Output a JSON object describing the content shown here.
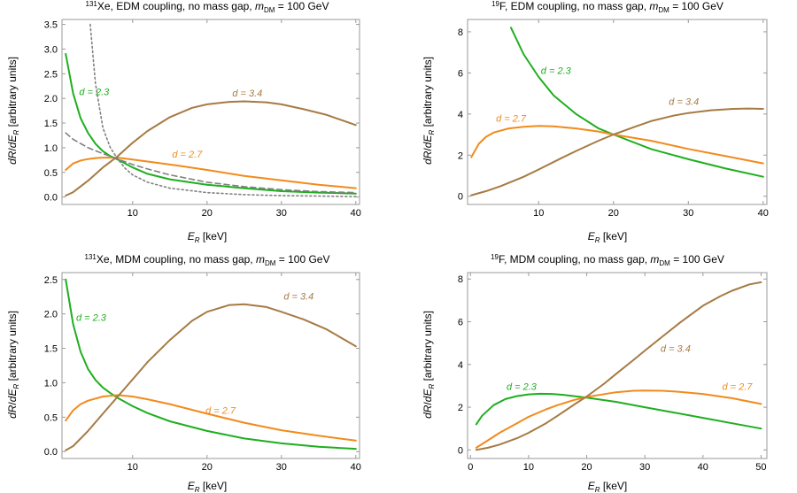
{
  "chart_data": [
    {
      "type": "line",
      "title": {
        "sup": "131",
        "main": "Xe, EDM coupling, no mass gap, ",
        "m": "m",
        "msub": "DM",
        "tail": " = 100 GeV"
      },
      "xlabel": {
        "E": "E",
        "sub": "R",
        "unit": " [keV]"
      },
      "ylabel": {
        "a": "dR",
        "slash": "/",
        "b": "dE",
        "sub": "R",
        "unit": " [arbitrary units]"
      },
      "xlim": [
        0.5,
        40.5
      ],
      "ylim": [
        -0.15,
        3.6
      ],
      "xticks": [
        10,
        20,
        30,
        40
      ],
      "yticks": [
        "0.0",
        "0.5",
        "1.0",
        "1.5",
        "2.0",
        "2.5",
        "3.0",
        "3.5"
      ],
      "series": [
        {
          "name": "d = 2.3",
          "color": "#1fae1f",
          "dash": "",
          "x": [
            1,
            2,
            3,
            4,
            5,
            6,
            7,
            8,
            10,
            12,
            15,
            20,
            25,
            30,
            35,
            40
          ],
          "y": [
            2.9,
            2.1,
            1.6,
            1.3,
            1.08,
            0.93,
            0.83,
            0.76,
            0.6,
            0.47,
            0.36,
            0.25,
            0.18,
            0.12,
            0.09,
            0.07
          ]
        },
        {
          "name": "d = 2.7",
          "color": "#f28a1c",
          "dash": "",
          "x": [
            1,
            2,
            3,
            4,
            5,
            6,
            8,
            10,
            13,
            16,
            20,
            25,
            30,
            35,
            40
          ],
          "y": [
            0.55,
            0.68,
            0.74,
            0.77,
            0.79,
            0.8,
            0.8,
            0.76,
            0.7,
            0.64,
            0.55,
            0.43,
            0.34,
            0.25,
            0.18
          ]
        },
        {
          "name": "d = 3.4",
          "color": "#a67a44",
          "dash": "",
          "x": [
            1,
            2,
            4,
            6,
            8,
            10,
            12,
            15,
            18,
            20,
            23,
            25,
            28,
            30,
            33,
            36,
            40
          ],
          "y": [
            0.03,
            0.1,
            0.33,
            0.6,
            0.83,
            1.1,
            1.34,
            1.62,
            1.81,
            1.88,
            1.93,
            1.94,
            1.92,
            1.88,
            1.78,
            1.67,
            1.46
          ]
        },
        {
          "name": "dashed",
          "color": "#808080",
          "dash": "6,4",
          "x": [
            1,
            2,
            4,
            6,
            8,
            10,
            12,
            15,
            20,
            25,
            30,
            35,
            40
          ],
          "y": [
            1.3,
            1.17,
            1.0,
            0.88,
            0.77,
            0.66,
            0.57,
            0.45,
            0.3,
            0.21,
            0.15,
            0.11,
            0.09
          ]
        },
        {
          "name": "dotted",
          "color": "#808080",
          "dash": "2,3",
          "x": [
            4.3,
            5,
            6,
            7,
            8,
            9,
            10,
            12,
            15,
            20,
            25,
            30,
            35,
            40
          ],
          "y": [
            3.5,
            2.3,
            1.4,
            1.0,
            0.77,
            0.58,
            0.45,
            0.3,
            0.18,
            0.09,
            0.05,
            0.03,
            0.02,
            0.01
          ]
        }
      ],
      "annotations": [
        {
          "text": "d = 2.3",
          "color": "#1fae1f",
          "x": 2.8,
          "y": 2.07
        },
        {
          "text": "d = 2.7",
          "color": "#f28a1c",
          "x": 15.3,
          "y": 0.8
        },
        {
          "text": "d = 3.4",
          "color": "#a67a44",
          "x": 23.4,
          "y": 2.04
        }
      ]
    },
    {
      "type": "line",
      "title": {
        "sup": "19",
        "main": "F, EDM coupling, no mass gap, ",
        "m": "m",
        "msub": "DM",
        "tail": " = 100 GeV"
      },
      "xlabel": {
        "E": "E",
        "sub": "R",
        "unit": " [keV]"
      },
      "ylabel": {
        "a": "dR",
        "slash": "/",
        "b": "dE",
        "sub": "R",
        "unit": " [arbitrary units]"
      },
      "xlim": [
        0.5,
        40.5
      ],
      "ylim": [
        -0.4,
        8.6
      ],
      "xticks": [
        10,
        20,
        30,
        40
      ],
      "yticks": [
        "0",
        "2",
        "4",
        "6",
        "8"
      ],
      "series": [
        {
          "name": "d = 2.3",
          "color": "#1fae1f",
          "dash": "",
          "x": [
            6.3,
            8,
            10,
            12,
            15,
            18,
            20,
            25,
            30,
            35,
            40
          ],
          "y": [
            8.2,
            6.9,
            5.8,
            4.9,
            4.0,
            3.3,
            3.0,
            2.3,
            1.8,
            1.35,
            0.95
          ]
        },
        {
          "name": "d = 2.7",
          "color": "#f28a1c",
          "dash": "",
          "x": [
            1,
            2,
            3,
            4,
            6,
            8,
            10,
            12,
            15,
            18,
            20,
            25,
            30,
            35,
            40
          ],
          "y": [
            1.9,
            2.55,
            2.9,
            3.1,
            3.3,
            3.38,
            3.42,
            3.4,
            3.3,
            3.15,
            3.0,
            2.7,
            2.3,
            1.95,
            1.6
          ]
        },
        {
          "name": "d = 3.4",
          "color": "#a67a44",
          "dash": "",
          "x": [
            1,
            3,
            5,
            8,
            10,
            13,
            15,
            18,
            20,
            23,
            25,
            28,
            30,
            33,
            36,
            38,
            40
          ],
          "y": [
            0.05,
            0.25,
            0.5,
            0.95,
            1.3,
            1.85,
            2.2,
            2.7,
            3.0,
            3.4,
            3.65,
            3.92,
            4.05,
            4.18,
            4.25,
            4.27,
            4.25
          ]
        }
      ],
      "annotations": [
        {
          "text": "d = 2.3",
          "color": "#1fae1f",
          "x": 10.3,
          "y": 5.95
        },
        {
          "text": "d = 2.7",
          "color": "#f28a1c",
          "x": 4.3,
          "y": 3.63
        },
        {
          "text": "d = 3.4",
          "color": "#a67a44",
          "x": 27.4,
          "y": 4.45
        }
      ]
    },
    {
      "type": "line",
      "title": {
        "sup": "131",
        "main": "Xe, MDM coupling, no mass gap, ",
        "m": "m",
        "msub": "DM",
        "tail": " = 100 GeV"
      },
      "xlabel": {
        "E": "E",
        "sub": "R",
        "unit": " [keV]"
      },
      "ylabel": {
        "a": "dR",
        "slash": "/",
        "b": "dE",
        "sub": "R",
        "unit": " [arbitrary units]"
      },
      "xlim": [
        0.5,
        40.5
      ],
      "ylim": [
        -0.1,
        2.6
      ],
      "xticks": [
        10,
        20,
        30,
        40
      ],
      "yticks": [
        "0.0",
        "0.5",
        "1.0",
        "1.5",
        "2.0",
        "2.5"
      ],
      "series": [
        {
          "name": "d = 2.3",
          "color": "#1fae1f",
          "dash": "",
          "x": [
            1,
            2,
            3,
            4,
            5,
            6,
            7,
            8,
            10,
            12,
            15,
            20,
            25,
            30,
            35,
            40
          ],
          "y": [
            2.5,
            1.85,
            1.45,
            1.2,
            1.04,
            0.93,
            0.85,
            0.78,
            0.66,
            0.56,
            0.44,
            0.3,
            0.19,
            0.12,
            0.07,
            0.04
          ]
        },
        {
          "name": "d = 2.7",
          "color": "#f28a1c",
          "dash": "",
          "x": [
            1,
            2,
            3,
            4,
            6,
            8,
            10,
            12,
            15,
            20,
            25,
            30,
            35,
            40
          ],
          "y": [
            0.45,
            0.6,
            0.69,
            0.74,
            0.8,
            0.82,
            0.8,
            0.76,
            0.69,
            0.55,
            0.42,
            0.31,
            0.23,
            0.16
          ]
        },
        {
          "name": "d = 3.4",
          "color": "#a67a44",
          "dash": "",
          "x": [
            1,
            2,
            4,
            6,
            8,
            10,
            12,
            15,
            18,
            20,
            23,
            25,
            28,
            30,
            33,
            36,
            40
          ],
          "y": [
            0.02,
            0.08,
            0.3,
            0.55,
            0.8,
            1.05,
            1.3,
            1.62,
            1.9,
            2.03,
            2.13,
            2.14,
            2.1,
            2.03,
            1.92,
            1.78,
            1.53
          ]
        }
      ],
      "annotations": [
        {
          "text": "d = 2.3",
          "color": "#1fae1f",
          "x": 2.4,
          "y": 1.9
        },
        {
          "text": "d = 2.7",
          "color": "#f28a1c",
          "x": 19.8,
          "y": 0.55
        },
        {
          "text": "d = 3.4",
          "color": "#a67a44",
          "x": 30.3,
          "y": 2.21
        }
      ]
    },
    {
      "type": "line",
      "title": {
        "sup": "19",
        "main": "F, MDM coupling, no mass gap, ",
        "m": "m",
        "msub": "DM",
        "tail": " = 100 GeV"
      },
      "xlabel": {
        "E": "E",
        "sub": "R",
        "unit": " [keV]"
      },
      "ylabel": {
        "a": "dR",
        "slash": "/",
        "b": "dE",
        "sub": "R",
        "unit": " [arbitrary units]"
      },
      "xlim": [
        -0.5,
        51
      ],
      "ylim": [
        -0.4,
        8.3
      ],
      "xticks": [
        0,
        10,
        20,
        30,
        40,
        50
      ],
      "yticks": [
        "0",
        "2",
        "4",
        "6",
        "8"
      ],
      "series": [
        {
          "name": "d = 2.3",
          "color": "#1fae1f",
          "dash": "",
          "x": [
            1,
            2,
            4,
            6,
            8,
            10,
            12,
            14,
            16,
            20,
            25,
            30,
            35,
            40,
            45,
            50
          ],
          "y": [
            1.2,
            1.6,
            2.1,
            2.38,
            2.52,
            2.6,
            2.63,
            2.62,
            2.58,
            2.45,
            2.25,
            2.0,
            1.75,
            1.5,
            1.25,
            1.0
          ]
        },
        {
          "name": "d = 2.7",
          "color": "#f28a1c",
          "dash": "",
          "x": [
            1,
            3,
            5,
            8,
            10,
            13,
            15,
            18,
            20,
            25,
            28,
            30,
            33,
            36,
            40,
            45,
            50
          ],
          "y": [
            0.1,
            0.45,
            0.8,
            1.25,
            1.55,
            1.9,
            2.1,
            2.35,
            2.48,
            2.7,
            2.77,
            2.78,
            2.77,
            2.72,
            2.62,
            2.42,
            2.15
          ]
        },
        {
          "name": "d = 3.4",
          "color": "#a67a44",
          "dash": "",
          "x": [
            1,
            3,
            5,
            8,
            10,
            13,
            15,
            18,
            20,
            23,
            25,
            28,
            30,
            33,
            36,
            40,
            43,
            45,
            48,
            50
          ],
          "y": [
            0.0,
            0.1,
            0.25,
            0.55,
            0.8,
            1.25,
            1.6,
            2.15,
            2.5,
            3.1,
            3.55,
            4.2,
            4.65,
            5.3,
            5.95,
            6.75,
            7.2,
            7.45,
            7.75,
            7.85
          ]
        }
      ],
      "annotations": [
        {
          "text": "d = 2.3",
          "color": "#1fae1f",
          "x": 6.2,
          "y": 2.82
        },
        {
          "text": "d = 2.7",
          "color": "#f28a1c",
          "x": 43.3,
          "y": 2.81
        },
        {
          "text": "d = 3.4",
          "color": "#a67a44",
          "x": 32.7,
          "y": 4.6
        }
      ]
    }
  ]
}
